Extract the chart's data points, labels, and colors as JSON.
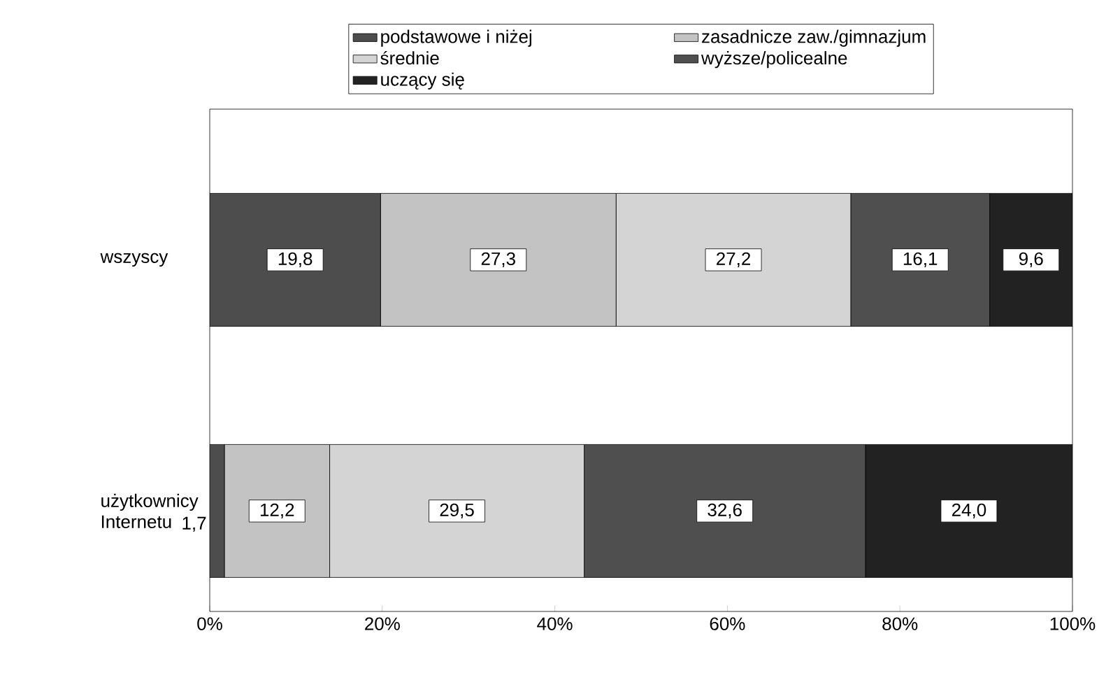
{
  "chart_data": {
    "type": "bar",
    "orientation": "horizontal",
    "stacked": true,
    "categories": [
      "wszyscy",
      "użytkownicy Internetu"
    ],
    "series": [
      {
        "name": "podstawowe i niżej",
        "color": "#4d4d4d",
        "values": [
          19.8,
          1.7
        ],
        "value_labels": [
          "19,8",
          "1,7"
        ]
      },
      {
        "name": "zasadnicze zaw./gimnazjum",
        "color": "#c3c3c3",
        "values": [
          27.3,
          12.2
        ],
        "value_labels": [
          "27,3",
          "12,2"
        ]
      },
      {
        "name": "średnie",
        "color": "#d4d4d4",
        "values": [
          27.2,
          29.5
        ],
        "value_labels": [
          "27,2",
          "29,5"
        ]
      },
      {
        "name": "wyższe/policealne",
        "color": "#4f4f4f",
        "values": [
          16.1,
          32.6
        ],
        "value_labels": [
          "16,1",
          "32,6"
        ]
      },
      {
        "name": "uczący się",
        "color": "#222222",
        "values": [
          9.6,
          24.0
        ],
        "value_labels": [
          "9,6",
          "24,0"
        ]
      }
    ],
    "xlim": [
      0,
      100
    ],
    "xticks": [
      {
        "value": 0,
        "label": "0%"
      },
      {
        "value": 20,
        "label": "20%"
      },
      {
        "value": 40,
        "label": "40%"
      },
      {
        "value": 60,
        "label": "60%"
      },
      {
        "value": 80,
        "label": "80%"
      },
      {
        "value": 100,
        "label": "100%"
      }
    ],
    "legend": "top"
  }
}
